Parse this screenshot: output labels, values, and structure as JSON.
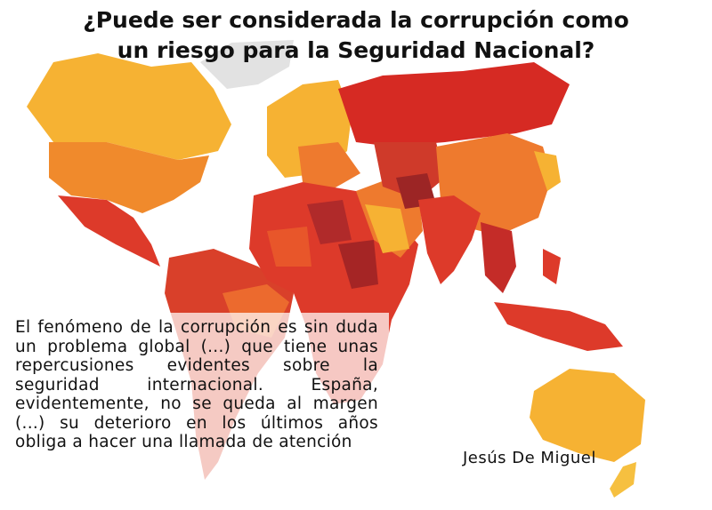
{
  "title": {
    "lines": [
      "¿Puede ser considerada la corrupción como",
      "un riesgo para la Seguridad Nacional?"
    ]
  },
  "quote": {
    "text": "El fenómeno de la corrupción es sin duda un problema global (...) que tiene unas repercusiones evidentes sobre la seguridad internacional. España, evidentemente, no se queda al margen (...) su deterioro en los últimos años obliga a hacer una llamada de atención"
  },
  "author": "Jesús De Miguel"
}
